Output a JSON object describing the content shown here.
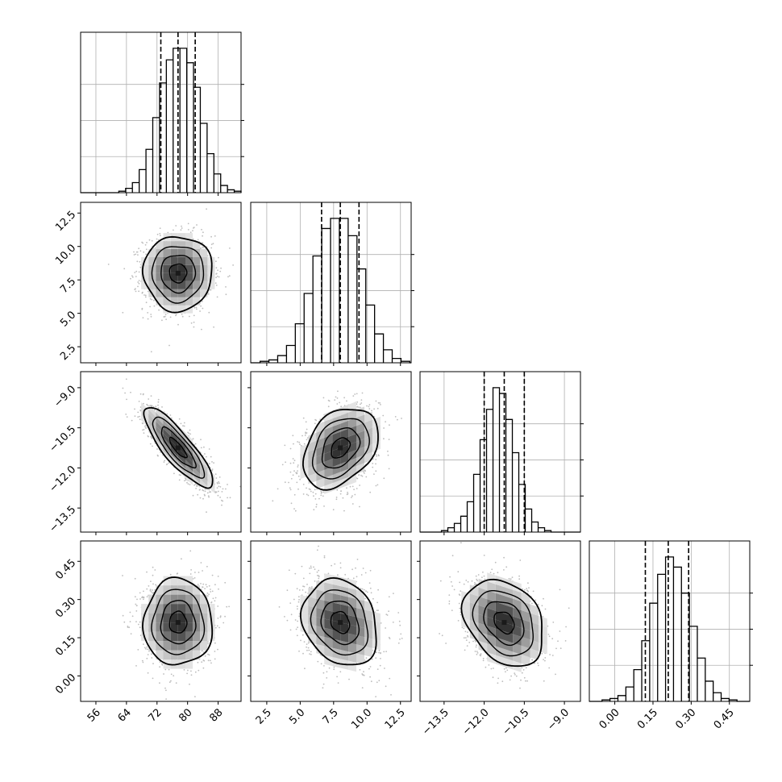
{
  "chart_data": {
    "type": "corner",
    "title": "",
    "grid": true,
    "quantile_line_style": "dashed",
    "colors": {
      "line": "#000000",
      "grid": "#b0b0b0",
      "points": "#bdbdbd",
      "density_dark": "#1a1a1a"
    },
    "parameters": [
      {
        "range": [
          52,
          94
        ],
        "ticks": [
          56,
          64,
          72,
          80,
          88
        ],
        "tick_labels": [
          "56",
          "64",
          "72",
          "80",
          "88"
        ],
        "quantiles": [
          73.0,
          77.5,
          82.0
        ],
        "hist_edges": [
          62,
          94
        ],
        "hist": [
          1,
          3,
          7,
          16,
          30,
          52,
          76,
          92,
          100,
          100,
          90,
          73,
          48,
          27,
          13,
          5,
          2,
          1
        ]
      },
      {
        "range": [
          1.3,
          13.3
        ],
        "ticks": [
          2.5,
          5.0,
          7.5,
          10.0,
          12.5
        ],
        "tick_labels": [
          "2.5",
          "5.0",
          "7.5",
          "10.0",
          "12.5"
        ],
        "quantiles": [
          6.6,
          8.0,
          9.4
        ],
        "hist_edges": [
          2.0,
          13.2
        ],
        "hist": [
          1,
          2,
          5,
          12,
          27,
          48,
          74,
          93,
          100,
          100,
          88,
          65,
          40,
          20,
          9,
          3,
          1
        ]
      },
      {
        "range": [
          -14.4,
          -8.4
        ],
        "ticks": [
          -13.5,
          -12.0,
          -10.5,
          -9.0
        ],
        "tick_labels": [
          "−13.5",
          "−12.0",
          "−10.5",
          "−9.0"
        ],
        "quantiles": [
          -12.0,
          -11.25,
          -10.5
        ],
        "hist_edges": [
          -13.6,
          -9.5
        ],
        "hist": [
          1,
          3,
          6,
          11,
          21,
          40,
          64,
          85,
          100,
          96,
          78,
          55,
          33,
          16,
          7,
          3,
          1
        ]
      },
      {
        "range": [
          -0.1,
          0.53
        ],
        "ticks": [
          0.0,
          0.15,
          0.3,
          0.45
        ],
        "tick_labels": [
          "0.00",
          "0.15",
          "0.30",
          "0.45"
        ],
        "quantiles": [
          0.12,
          0.21,
          0.29
        ],
        "hist_edges": [
          -0.05,
          0.48
        ],
        "hist": [
          1,
          2,
          4,
          10,
          22,
          42,
          68,
          88,
          100,
          93,
          75,
          52,
          30,
          14,
          6,
          2,
          1
        ]
      }
    ],
    "y_ticks": [
      null,
      {
        "values": [
          2.5,
          5.0,
          7.5,
          10.0,
          12.5
        ],
        "labels": [
          "2.5",
          "5.0",
          "7.5",
          "10.0",
          "12.5"
        ]
      },
      {
        "values": [
          -13.5,
          -12.0,
          -10.5,
          -9.0
        ],
        "labels": [
          "−13.5",
          "−12.0",
          "−10.5",
          "−9.0"
        ]
      },
      {
        "values": [
          0.0,
          0.15,
          0.3,
          0.45
        ],
        "labels": [
          "0.00",
          "0.15",
          "0.30",
          "0.45"
        ]
      }
    ],
    "pairs": [
      {
        "row": 1,
        "col": 0,
        "mean": [
          77.5,
          8.0
        ],
        "sd": [
          4.5,
          1.4
        ],
        "corr": 0.0
      },
      {
        "row": 2,
        "col": 0,
        "mean": [
          77.5,
          -11.25
        ],
        "sd": [
          4.5,
          0.75
        ],
        "corr": -0.85
      },
      {
        "row": 2,
        "col": 1,
        "mean": [
          8.0,
          -11.25
        ],
        "sd": [
          1.4,
          0.75
        ],
        "corr": 0.35
      },
      {
        "row": 3,
        "col": 0,
        "mean": [
          77.5,
          0.21
        ],
        "sd": [
          4.5,
          0.085
        ],
        "corr": 0.0
      },
      {
        "row": 3,
        "col": 1,
        "mean": [
          8.0,
          0.21
        ],
        "sd": [
          1.4,
          0.085
        ],
        "corr": -0.2
      },
      {
        "row": 3,
        "col": 2,
        "mean": [
          -11.25,
          0.21
        ],
        "sd": [
          0.75,
          0.085
        ],
        "corr": -0.3
      }
    ],
    "contour_levels_sigma": [
      0.5,
      1.0,
      1.5,
      2.0
    ]
  }
}
